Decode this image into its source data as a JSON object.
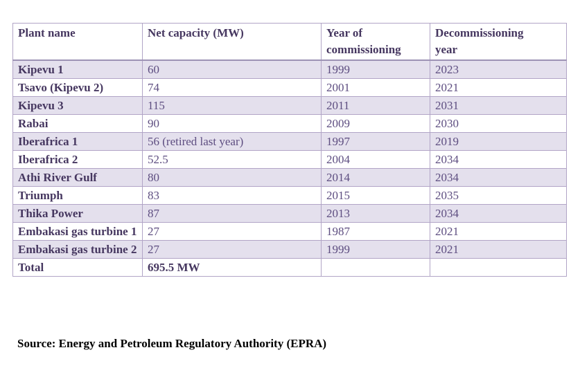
{
  "table": {
    "headers": [
      "Plant name",
      "Net capacity (MW)",
      "Year of commissioning",
      "Decommissioning year"
    ],
    "rows": [
      {
        "plant": "Kipevu 1",
        "capacity": "60",
        "commissioned": "1999",
        "decommissioned": "2023"
      },
      {
        "plant": "Tsavo (Kipevu 2)",
        "capacity": "74",
        "commissioned": "2001",
        "decommissioned": "2021"
      },
      {
        "plant": "Kipevu 3",
        "capacity": "115",
        "commissioned": "2011",
        "decommissioned": "2031"
      },
      {
        "plant": "Rabai",
        "capacity": "90",
        "commissioned": "2009",
        "decommissioned": "2030"
      },
      {
        "plant": "Iberafrica 1",
        "capacity": "56 (retired last year)",
        "commissioned": "1997",
        "decommissioned": "2019"
      },
      {
        "plant": "Iberafrica 2",
        "capacity": "52.5",
        "commissioned": "2004",
        "decommissioned": "2034"
      },
      {
        "plant": "Athi River Gulf",
        "capacity": "80",
        "commissioned": "2014",
        "decommissioned": "2034"
      },
      {
        "plant": "Triumph",
        "capacity": "83",
        "commissioned": "2015",
        "decommissioned": "2035"
      },
      {
        "plant": "Thika Power",
        "capacity": "87",
        "commissioned": "2013",
        "decommissioned": "2034"
      },
      {
        "plant": "Embakasi gas turbine 1",
        "capacity": "27",
        "commissioned": "1987",
        "decommissioned": "2021"
      },
      {
        "plant": "Embakasi gas turbine 2",
        "capacity": "27",
        "commissioned": "1999",
        "decommissioned": "2021"
      },
      {
        "plant": "Total",
        "capacity": "695.5 MW",
        "commissioned": "",
        "decommissioned": ""
      }
    ]
  },
  "source_note": "Source: Energy and Petroleum Regulatory Authority (EPRA)",
  "colors": {
    "row_shading": "#e4e0ed",
    "border": "#b1a4c6",
    "header_divider": "#9c92b4",
    "header_text": "#463760",
    "data_text": "#5d4d80",
    "source_text": "#000000"
  }
}
